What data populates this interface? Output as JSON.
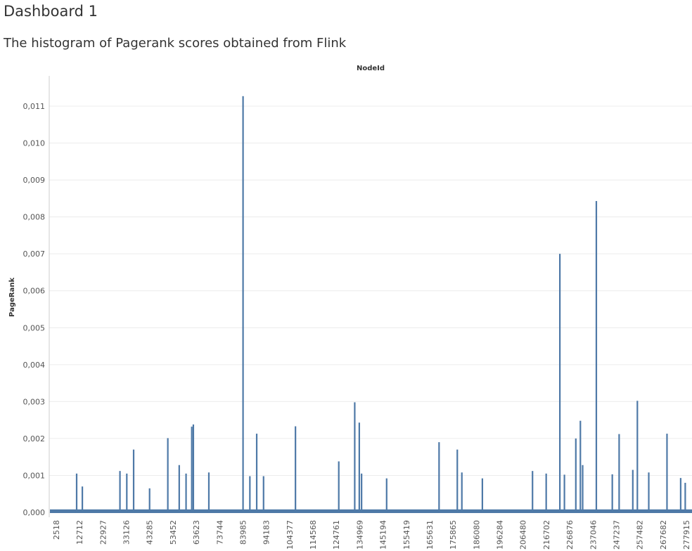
{
  "dashboard": {
    "title": "Dashboard 1"
  },
  "sheet": {
    "title": "The histogram of Pagerank scores obtained from Flink"
  },
  "colors": {
    "bar": "#4e79a7",
    "grid": "#ececec",
    "axis": "#cccccc"
  },
  "chart_data": {
    "type": "bar",
    "title": "The histogram of Pagerank scores obtained from Flink",
    "xlabel": "NodeId",
    "ylabel": "PageRank",
    "ylim": [
      0,
      0.0113
    ],
    "grid": true,
    "x_tick_labels": [
      "2518",
      "12712",
      "22927",
      "33126",
      "43285",
      "53452",
      "63623",
      "73744",
      "83985",
      "94183",
      "104377",
      "114568",
      "124761",
      "134969",
      "145194",
      "155419",
      "165631",
      "175865",
      "186080",
      "196284",
      "206480",
      "216702",
      "226876",
      "237046",
      "247237",
      "257482",
      "267682",
      "277915"
    ],
    "y_ticks": [
      0,
      0.001,
      0.002,
      0.003,
      0.004,
      0.005,
      0.006,
      0.007,
      0.008,
      0.009,
      0.01,
      0.011
    ],
    "y_tick_labels": [
      "0,000",
      "0,001",
      "0,002",
      "0,003",
      "0,004",
      "0,005",
      "0,006",
      "0,007",
      "0,008",
      "0,009",
      "0,010",
      "0,011"
    ],
    "baseline_value": 8e-05,
    "x_range": [
      0,
      282000
    ],
    "x": [
      12000,
      14500,
      31000,
      34000,
      37000,
      44000,
      52000,
      57000,
      60000,
      62500,
      63200,
      70000,
      85000,
      88000,
      91000,
      94000,
      108000,
      127000,
      134000,
      136000,
      137000,
      148000,
      171000,
      179000,
      181000,
      190000,
      212000,
      218000,
      224000,
      226000,
      231000,
      233000,
      234000,
      240000,
      247000,
      250000,
      256000,
      258000,
      263000,
      271000,
      277000,
      279000
    ],
    "values": [
      0.00105,
      0.0007,
      0.00112,
      0.00105,
      0.0017,
      0.00065,
      0.00201,
      0.00128,
      0.00105,
      0.00232,
      0.00238,
      0.00108,
      0.01127,
      0.00098,
      0.00213,
      0.00098,
      0.00233,
      0.00138,
      0.00298,
      0.00243,
      0.00105,
      0.00092,
      0.0019,
      0.0017,
      0.00108,
      0.00092,
      0.00112,
      0.00105,
      0.007,
      0.00102,
      0.002,
      0.00248,
      0.00128,
      0.00843,
      0.00103,
      0.00212,
      0.00115,
      0.00302,
      0.00108,
      0.00213,
      0.00093,
      0.0008
    ]
  }
}
